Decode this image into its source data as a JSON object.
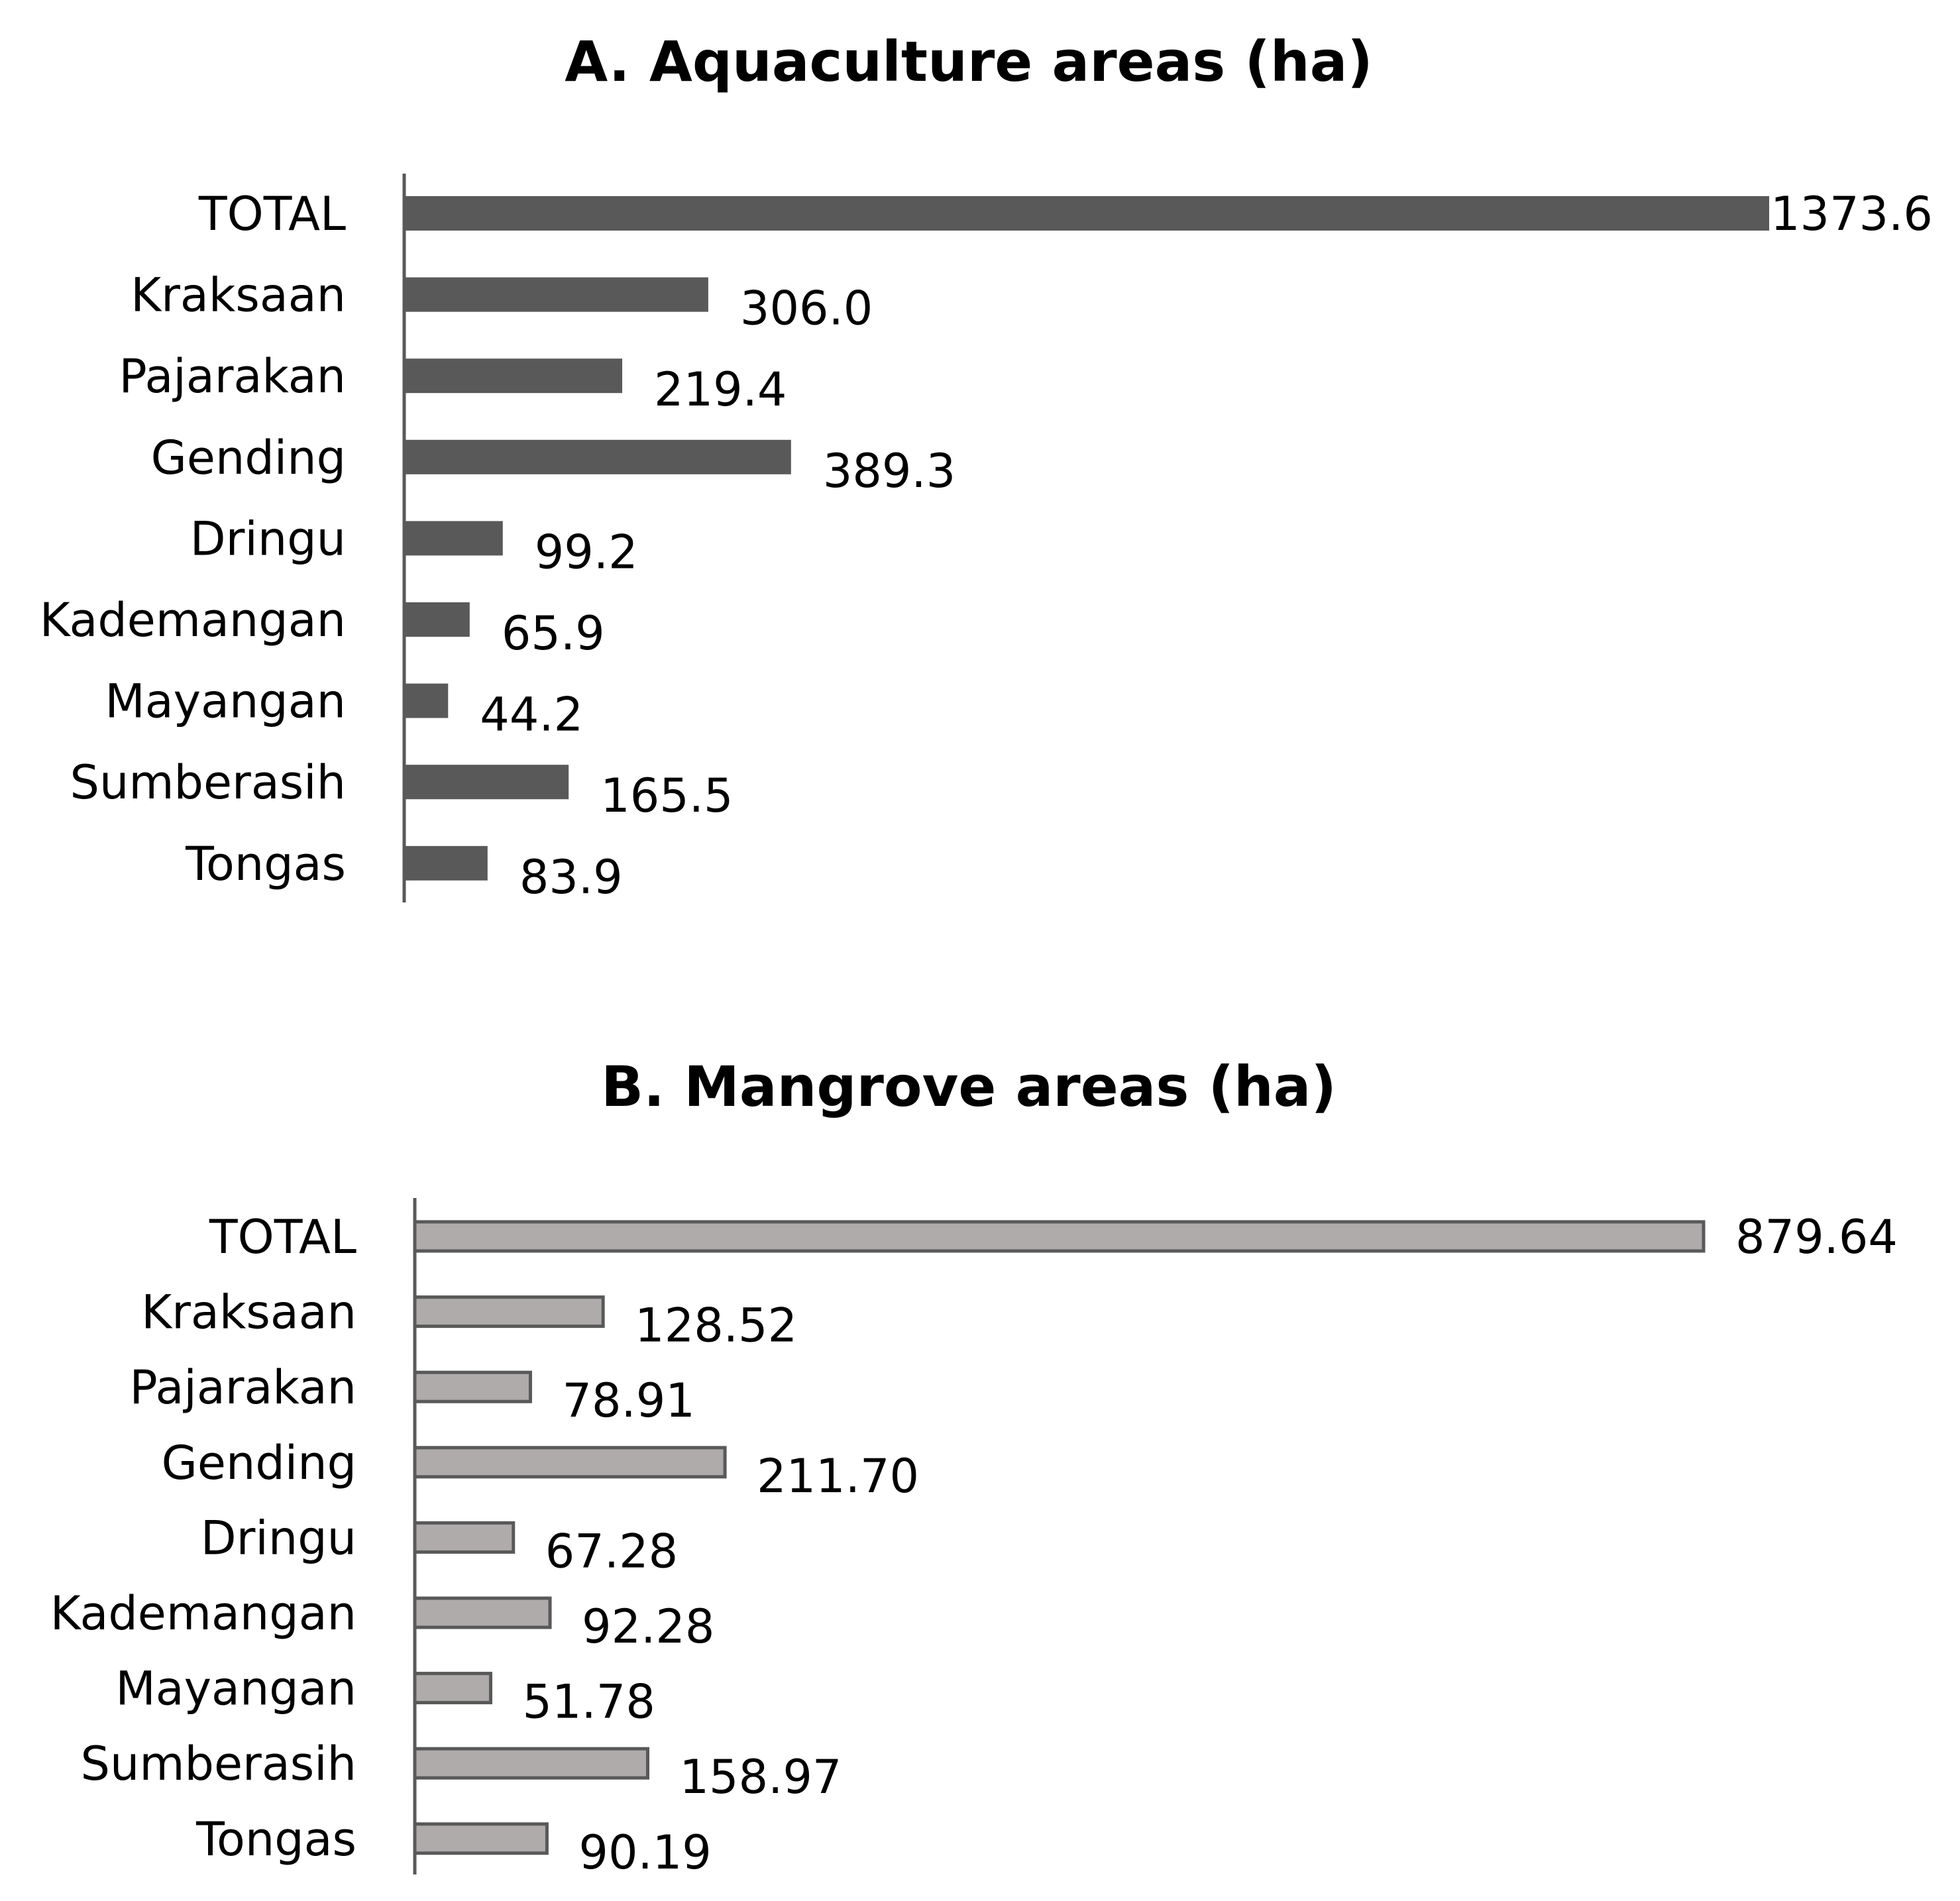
{
  "colors": {
    "aquaculture_bar": "#595959",
    "mangrove_bar": "#afabab",
    "mangrove_outline": "#595959",
    "axis": "#595959"
  },
  "chart_data": [
    {
      "type": "bar",
      "orientation": "horizontal",
      "title": "A. Aquaculture areas (ha)",
      "categories": [
        "TOTAL",
        "Kraksaan",
        "Pajarakan",
        "Gending",
        "Dringu",
        "Kademangan",
        "Mayangan",
        "Sumberasih",
        "Tongas"
      ],
      "values": [
        1373.6,
        306.0,
        219.4,
        389.3,
        99.2,
        65.9,
        44.2,
        165.5,
        83.9
      ],
      "labels": [
        "1373.6",
        "306.0",
        "219.4",
        "389.3",
        "99.2",
        "65.9",
        "44.2",
        "165.5",
        "83.9"
      ],
      "xlim": [
        0,
        1373.6
      ],
      "grid": false,
      "legend": "none"
    },
    {
      "type": "bar",
      "orientation": "horizontal",
      "title": "B. Mangrove areas (ha)",
      "categories": [
        "TOTAL",
        "Kraksaan",
        "Pajarakan",
        "Gending",
        "Dringu",
        "Kademangan",
        "Mayangan",
        "Sumberasih",
        "Tongas"
      ],
      "values": [
        879.64,
        128.52,
        78.91,
        211.7,
        67.28,
        92.28,
        51.78,
        158.97,
        90.19
      ],
      "labels": [
        "879.64",
        "128.52",
        "78.91",
        "211.70",
        "67.28",
        "92.28",
        "51.78",
        "158.97",
        "90.19"
      ],
      "xlim": [
        0,
        879.64
      ],
      "grid": false,
      "legend": "none"
    }
  ]
}
